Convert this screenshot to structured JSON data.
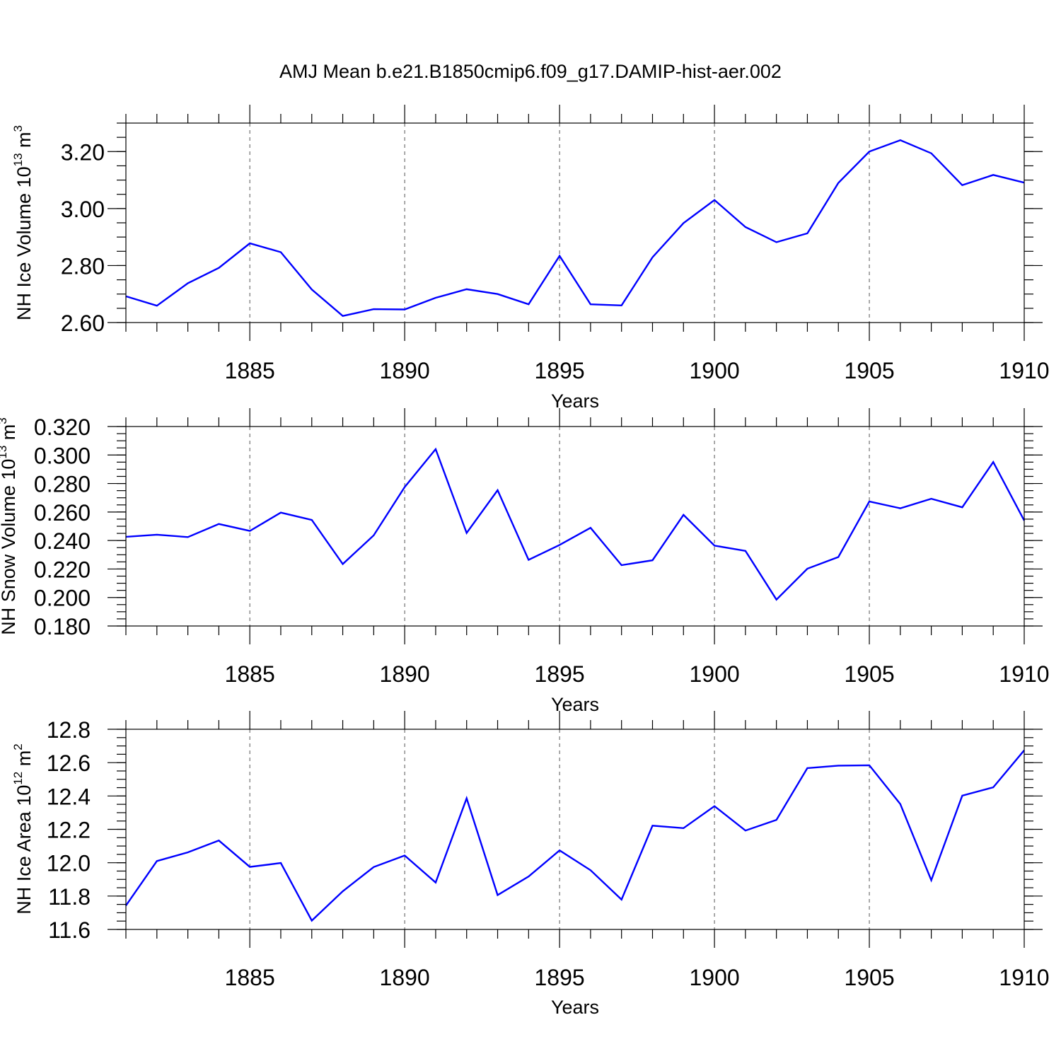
{
  "title": "AMJ Mean b.e21.B1850cmip6.f09_g17.DAMIP-hist-aer.002",
  "line_color": "#0000ff",
  "chart_data": [
    {
      "type": "line",
      "ylabel": "NH Ice Volume 10",
      "ylabel_exp": "13",
      "ylabel_unit": " m",
      "ylabel_unit_exp": "3",
      "xlabel": "Years",
      "xlim": [
        1881,
        1910
      ],
      "ylim": [
        2.6,
        3.3
      ],
      "yticks": [
        2.6,
        2.8,
        3.0,
        3.2
      ],
      "ytick_labels": [
        "2.60",
        "2.80",
        "3.00",
        "3.20"
      ],
      "yminor_step": 0.05,
      "xticks": [
        1885,
        1890,
        1895,
        1900,
        1905,
        1910
      ],
      "xtick_labels": [
        "1885",
        "1890",
        "1895",
        "1900",
        "1905",
        "1910"
      ],
      "x": [
        1881,
        1882,
        1883,
        1884,
        1885,
        1886,
        1887,
        1888,
        1889,
        1890,
        1891,
        1892,
        1893,
        1894,
        1895,
        1896,
        1897,
        1898,
        1899,
        1900,
        1901,
        1902,
        1903,
        1904,
        1905,
        1906,
        1907,
        1908,
        1909,
        1910
      ],
      "values": [
        2.692,
        2.659,
        2.738,
        2.792,
        2.878,
        2.847,
        2.716,
        2.623,
        2.647,
        2.646,
        2.687,
        2.717,
        2.7,
        2.664,
        2.834,
        2.664,
        2.66,
        2.829,
        2.949,
        3.03,
        2.935,
        2.882,
        2.913,
        3.09,
        3.2,
        3.24,
        3.194,
        3.082,
        3.118,
        3.091
      ]
    },
    {
      "type": "line",
      "ylabel": "NH Snow Volume 10",
      "ylabel_exp": "13",
      "ylabel_unit": " m",
      "ylabel_unit_exp": "3",
      "xlabel": "Years",
      "xlim": [
        1881,
        1910
      ],
      "ylim": [
        0.18,
        0.32
      ],
      "yticks": [
        0.18,
        0.2,
        0.22,
        0.24,
        0.26,
        0.28,
        0.3,
        0.32
      ],
      "ytick_labels": [
        "0.180",
        "0.200",
        "0.220",
        "0.240",
        "0.260",
        "0.280",
        "0.300",
        "0.320"
      ],
      "yminor_step": 0.005,
      "xticks": [
        1885,
        1890,
        1895,
        1900,
        1905,
        1910
      ],
      "xtick_labels": [
        "1885",
        "1890",
        "1895",
        "1900",
        "1905",
        "1910"
      ],
      "x": [
        1881,
        1882,
        1883,
        1884,
        1885,
        1886,
        1887,
        1888,
        1889,
        1890,
        1891,
        1892,
        1893,
        1894,
        1895,
        1896,
        1897,
        1898,
        1899,
        1900,
        1901,
        1902,
        1903,
        1904,
        1905,
        1906,
        1907,
        1908,
        1909,
        1910
      ],
      "values": [
        0.2426,
        0.2441,
        0.2424,
        0.2516,
        0.2467,
        0.2596,
        0.2544,
        0.2235,
        0.2436,
        0.2775,
        0.3041,
        0.2453,
        0.2753,
        0.2264,
        0.2369,
        0.2489,
        0.2227,
        0.2261,
        0.258,
        0.2364,
        0.2327,
        0.1985,
        0.2202,
        0.2284,
        0.2674,
        0.2626,
        0.2693,
        0.2633,
        0.2951,
        0.254
      ]
    },
    {
      "type": "line",
      "ylabel": "NH Ice Area 10",
      "ylabel_exp": "12",
      "ylabel_unit": " m",
      "ylabel_unit_exp": "2",
      "xlabel": "Years",
      "xlim": [
        1881,
        1910
      ],
      "ylim": [
        11.6,
        12.8
      ],
      "yticks": [
        11.6,
        11.8,
        12.0,
        12.2,
        12.4,
        12.6,
        12.8
      ],
      "ytick_labels": [
        "11.6",
        "11.8",
        "12.0",
        "12.2",
        "12.4",
        "12.6",
        "12.8"
      ],
      "yminor_step": 0.05,
      "xticks": [
        1885,
        1890,
        1895,
        1900,
        1905,
        1910
      ],
      "xtick_labels": [
        "1885",
        "1890",
        "1895",
        "1900",
        "1905",
        "1910"
      ],
      "x": [
        1881,
        1882,
        1883,
        1884,
        1885,
        1886,
        1887,
        1888,
        1889,
        1890,
        1891,
        1892,
        1893,
        1894,
        1895,
        1896,
        1897,
        1898,
        1899,
        1900,
        1901,
        1902,
        1903,
        1904,
        1905,
        1906,
        1907,
        1908,
        1909,
        1910
      ],
      "values": [
        11.743,
        12.01,
        12.062,
        12.133,
        11.975,
        11.998,
        11.653,
        11.829,
        11.974,
        12.043,
        11.881,
        12.386,
        11.806,
        11.917,
        12.074,
        11.955,
        11.779,
        12.222,
        12.207,
        12.339,
        12.193,
        12.257,
        12.567,
        12.582,
        12.584,
        12.352,
        11.895,
        12.402,
        12.452,
        12.674
      ]
    }
  ]
}
